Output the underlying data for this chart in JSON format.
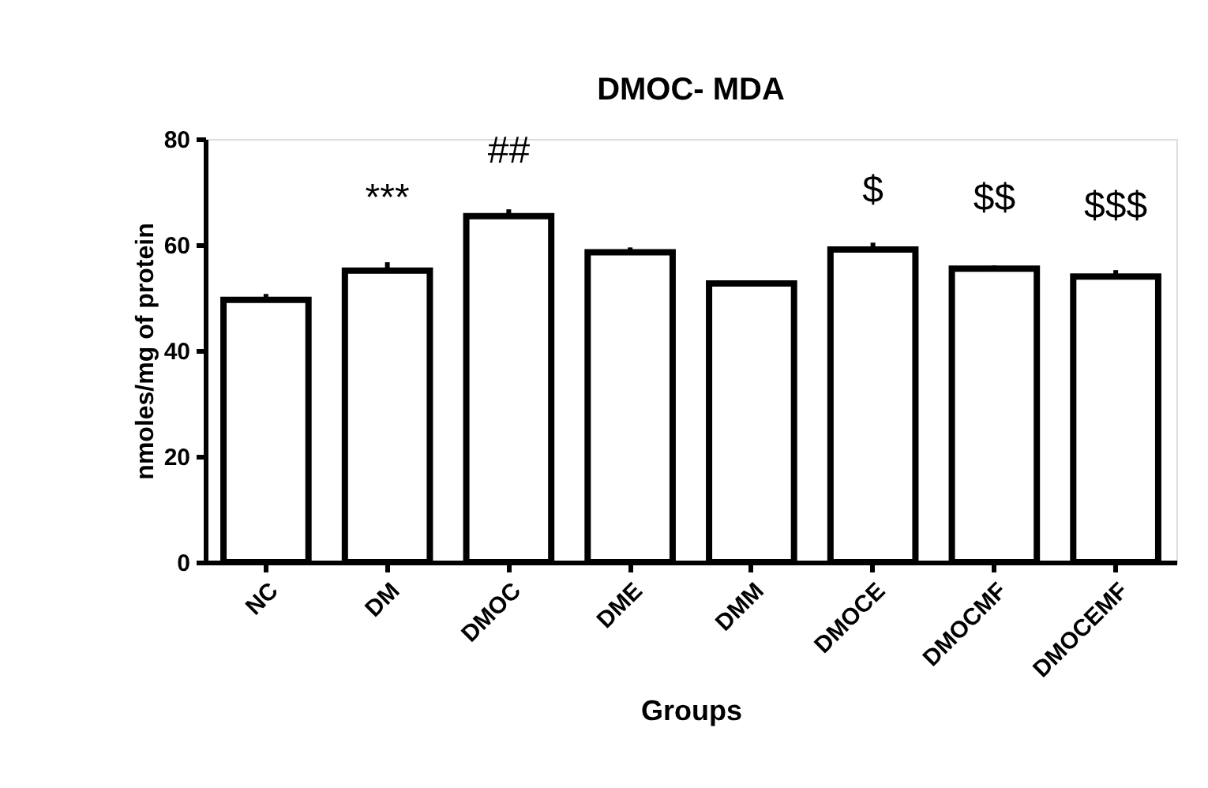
{
  "chart_data": {
    "type": "bar",
    "title": "DMOC- MDA",
    "xlabel": "Groups",
    "ylabel": "nmoles/mg of protein",
    "categories": [
      "NC",
      "DM",
      "DMOC",
      "DME",
      "DMM",
      "DMOCE",
      "DMOCMF",
      "DMOCEMF"
    ],
    "values": [
      49.6,
      55.1,
      65.4,
      58.6,
      52.7,
      59.1,
      55.5,
      54.0
    ],
    "errors": [
      [
        49.6,
        50.7
      ],
      [
        55.1,
        56.7
      ],
      [
        65.4,
        66.7
      ],
      [
        58.6,
        59.5
      ],
      [
        52.7,
        53.1
      ],
      [
        59.1,
        60.4
      ],
      [
        55.5,
        56.1
      ],
      [
        54.0,
        55.2
      ]
    ],
    "color": "#ffffff",
    "ylim": [
      0,
      80
    ],
    "yticks": [
      0,
      20,
      40,
      60,
      80
    ],
    "grid": false,
    "annotations": [
      "***",
      "##",
      "$",
      "$$",
      "$$$"
    ]
  }
}
